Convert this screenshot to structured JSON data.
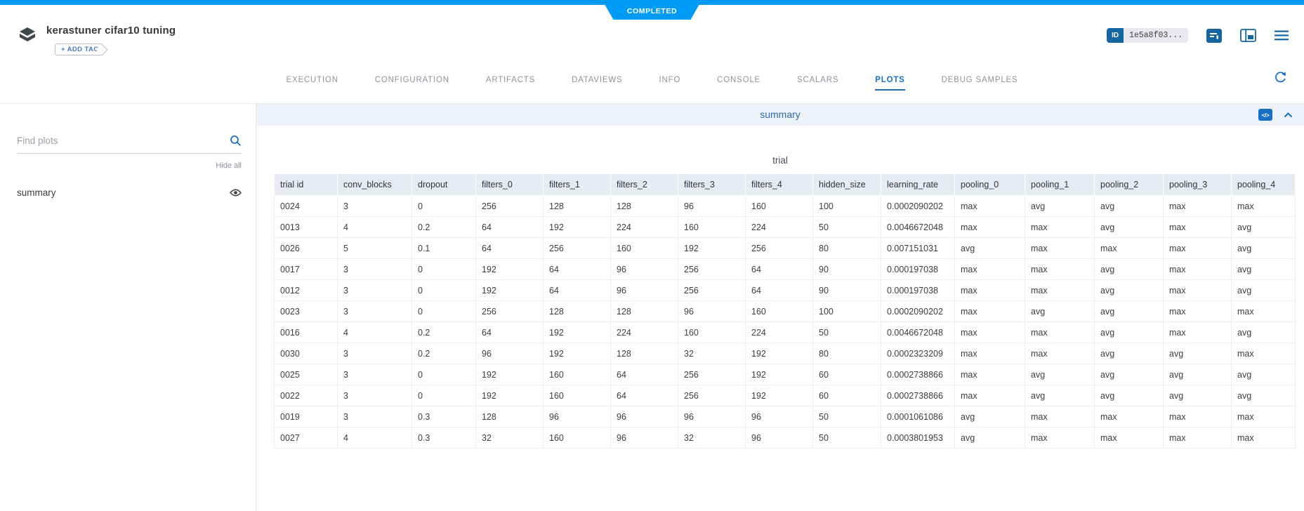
{
  "status": {
    "label": "COMPLETED"
  },
  "header": {
    "title": "kerastuner cifar10 tuning",
    "add_tag": "+ ADD TAG",
    "id_badge": {
      "label": "ID",
      "value": "1e5a8f03..."
    },
    "icons": [
      "experiment-logo-icon",
      "details-panel-icon",
      "layout-panel-icon",
      "menu-icon",
      "auto-refresh-icon"
    ]
  },
  "tabs": [
    {
      "label": "EXECUTION",
      "active": false
    },
    {
      "label": "CONFIGURATION",
      "active": false
    },
    {
      "label": "ARTIFACTS",
      "active": false
    },
    {
      "label": "DATAVIEWS",
      "active": false
    },
    {
      "label": "INFO",
      "active": false
    },
    {
      "label": "CONSOLE",
      "active": false
    },
    {
      "label": "SCALARS",
      "active": false
    },
    {
      "label": "PLOTS",
      "active": true
    },
    {
      "label": "DEBUG SAMPLES",
      "active": false
    }
  ],
  "sidebar": {
    "search_placeholder": "Find plots",
    "hide_all": "Hide all",
    "items": [
      {
        "label": "summary",
        "visible": true
      }
    ]
  },
  "panel": {
    "title": "summary"
  },
  "plot": {
    "title": "trial",
    "columns": [
      "trial id",
      "conv_blocks",
      "dropout",
      "filters_0",
      "filters_1",
      "filters_2",
      "filters_3",
      "filters_4",
      "hidden_size",
      "learning_rate",
      "pooling_0",
      "pooling_1",
      "pooling_2",
      "pooling_3",
      "pooling_4"
    ],
    "rows": [
      [
        "0024",
        "3",
        "0",
        "256",
        "128",
        "128",
        "96",
        "160",
        "100",
        "0.0002090202",
        "max",
        "avg",
        "avg",
        "max",
        "max"
      ],
      [
        "0013",
        "4",
        "0.2",
        "64",
        "192",
        "224",
        "160",
        "224",
        "50",
        "0.0046672048",
        "max",
        "max",
        "avg",
        "max",
        "avg"
      ],
      [
        "0026",
        "5",
        "0.1",
        "64",
        "256",
        "160",
        "192",
        "256",
        "80",
        "0.007151031",
        "avg",
        "max",
        "max",
        "max",
        "avg"
      ],
      [
        "0017",
        "3",
        "0",
        "192",
        "64",
        "96",
        "256",
        "64",
        "90",
        "0.000197038",
        "max",
        "max",
        "avg",
        "max",
        "avg"
      ],
      [
        "0012",
        "3",
        "0",
        "192",
        "64",
        "96",
        "256",
        "64",
        "90",
        "0.000197038",
        "max",
        "max",
        "avg",
        "max",
        "avg"
      ],
      [
        "0023",
        "3",
        "0",
        "256",
        "128",
        "128",
        "96",
        "160",
        "100",
        "0.0002090202",
        "max",
        "avg",
        "avg",
        "max",
        "max"
      ],
      [
        "0016",
        "4",
        "0.2",
        "64",
        "192",
        "224",
        "160",
        "224",
        "50",
        "0.0046672048",
        "max",
        "max",
        "avg",
        "max",
        "avg"
      ],
      [
        "0030",
        "3",
        "0.2",
        "96",
        "192",
        "128",
        "32",
        "192",
        "80",
        "0.0002323209",
        "max",
        "max",
        "avg",
        "avg",
        "max"
      ],
      [
        "0025",
        "3",
        "0",
        "192",
        "160",
        "64",
        "256",
        "192",
        "60",
        "0.0002738866",
        "max",
        "avg",
        "avg",
        "avg",
        "avg"
      ],
      [
        "0022",
        "3",
        "0",
        "192",
        "160",
        "64",
        "256",
        "192",
        "60",
        "0.0002738866",
        "max",
        "avg",
        "avg",
        "avg",
        "avg"
      ],
      [
        "0019",
        "3",
        "0.3",
        "128",
        "96",
        "96",
        "96",
        "96",
        "50",
        "0.0001061086",
        "avg",
        "max",
        "max",
        "max",
        "max"
      ],
      [
        "0027",
        "4",
        "0.3",
        "32",
        "160",
        "96",
        "32",
        "96",
        "50",
        "0.0003801953",
        "avg",
        "max",
        "max",
        "max",
        "max"
      ]
    ]
  },
  "colors": {
    "topbar_blue": "#009bf5",
    "ui_blue": "#15659e",
    "accent_blue": "#1a6fc4",
    "panel_bg": "#edf1f8",
    "table_header_bg": "#e8ebf2"
  }
}
